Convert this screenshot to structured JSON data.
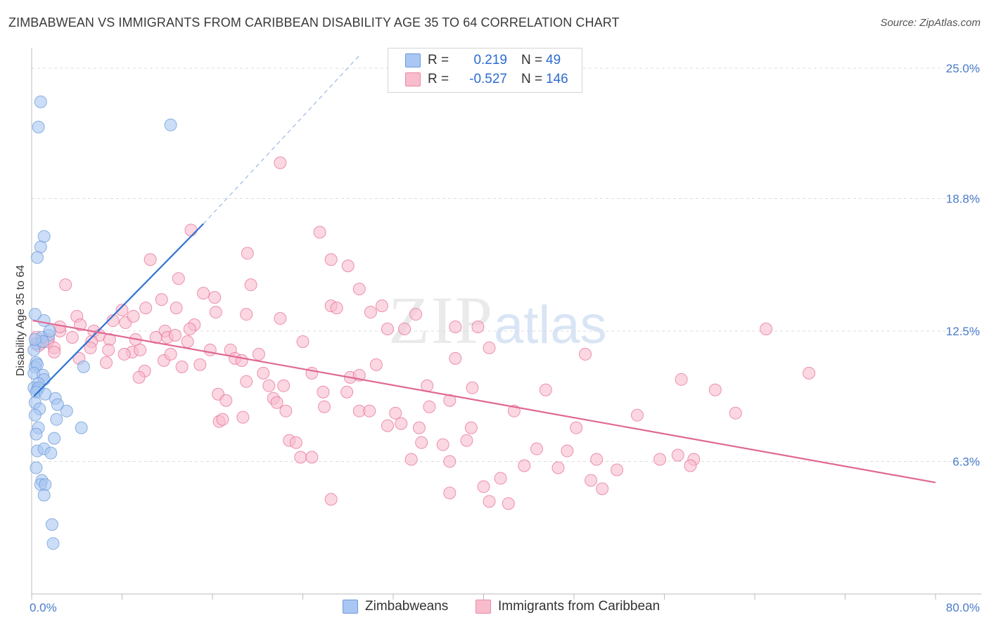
{
  "title": "ZIMBABWEAN VS IMMIGRANTS FROM CARIBBEAN DISABILITY AGE 35 TO 64 CORRELATION CHART",
  "source": "Source: ZipAtlas.com",
  "watermark": {
    "zip": "ZIP",
    "atlas": "atlas"
  },
  "legend": {
    "rows": [
      {
        "r_label": "R =",
        "r_value": "0.219",
        "n_label": "N =",
        "n_value": "49",
        "color": "#a9c7f2",
        "border": "#6c9ad8"
      },
      {
        "r_label": "R =",
        "r_value": "-0.527",
        "n_label": "N =",
        "n_value": "146",
        "color": "#f8bccd",
        "border": "#e88aa6"
      }
    ]
  },
  "bottom_legend": {
    "items": [
      {
        "label": "Zimbabweans",
        "color": "#a9c7f2",
        "border": "#6c9ad8"
      },
      {
        "label": "Immigrants from Caribbean",
        "color": "#f8bccd",
        "border": "#e88aa6"
      }
    ]
  },
  "chart_data": {
    "type": "scatter",
    "title": "ZIMBABWEAN VS IMMIGRANTS FROM CARIBBEAN DISABILITY AGE 35 TO 64 CORRELATION CHART",
    "xlabel": "",
    "ylabel": "Disability Age 35 to 64",
    "xlim": [
      0,
      80
    ],
    "ylim": [
      0,
      25
    ],
    "x_tick_labels": [
      "0.0%",
      "80.0%"
    ],
    "y_ticks": [
      6.3,
      12.5,
      18.8,
      25.0
    ],
    "y_tick_labels": [
      "6.3%",
      "12.5%",
      "18.8%",
      "25.0%"
    ],
    "grid": true,
    "legend_placement": "top-center",
    "series": [
      {
        "name": "Zimbabweans",
        "color": "#6c9ad8",
        "fill": "#a9c7f2",
        "trend": {
          "x": [
            0.2,
            15.2
          ],
          "y": [
            9.4,
            17.6
          ],
          "dashed_to": [
            29.0,
            25.0
          ]
        },
        "points": [
          [
            0.8,
            23.4
          ],
          [
            0.6,
            22.2
          ],
          [
            12.3,
            22.3
          ],
          [
            1.1,
            17.0
          ],
          [
            0.8,
            16.5
          ],
          [
            0.5,
            16.0
          ],
          [
            1.1,
            13.0
          ],
          [
            0.3,
            13.3
          ],
          [
            1.5,
            12.3
          ],
          [
            0.9,
            12.2
          ],
          [
            0.4,
            11.9
          ],
          [
            1.6,
            12.5
          ],
          [
            0.2,
            11.6
          ],
          [
            0.4,
            11.0
          ],
          [
            0.3,
            10.8
          ],
          [
            0.5,
            10.9
          ],
          [
            0.2,
            10.5
          ],
          [
            1.0,
            10.4
          ],
          [
            1.1,
            10.2
          ],
          [
            0.6,
            10.0
          ],
          [
            0.2,
            9.8
          ],
          [
            0.5,
            9.7
          ],
          [
            0.6,
            9.8
          ],
          [
            0.4,
            9.6
          ],
          [
            1.2,
            9.5
          ],
          [
            2.1,
            9.3
          ],
          [
            0.3,
            9.1
          ],
          [
            2.3,
            9.0
          ],
          [
            0.7,
            8.8
          ],
          [
            3.1,
            8.7
          ],
          [
            2.2,
            8.3
          ],
          [
            4.6,
            10.8
          ],
          [
            0.3,
            8.5
          ],
          [
            4.4,
            7.9
          ],
          [
            0.6,
            7.9
          ],
          [
            0.4,
            7.6
          ],
          [
            2.0,
            7.4
          ],
          [
            0.5,
            6.8
          ],
          [
            1.1,
            6.9
          ],
          [
            1.7,
            6.7
          ],
          [
            0.4,
            6.0
          ],
          [
            0.9,
            5.4
          ],
          [
            0.8,
            5.2
          ],
          [
            1.2,
            5.2
          ],
          [
            1.1,
            4.7
          ],
          [
            1.8,
            3.3
          ],
          [
            1.9,
            2.4
          ],
          [
            1.0,
            12.0
          ],
          [
            0.3,
            12.1
          ]
        ]
      },
      {
        "name": "Immigrants from Caribbean",
        "color": "#e6709a",
        "fill": "#f8bccd",
        "trend": {
          "x": [
            0.1,
            80.0
          ],
          "y": [
            13.0,
            5.3
          ]
        },
        "points": [
          [
            22.0,
            20.5
          ],
          [
            14.1,
            17.3
          ],
          [
            25.5,
            17.2
          ],
          [
            19.1,
            16.2
          ],
          [
            10.5,
            15.9
          ],
          [
            26.5,
            15.9
          ],
          [
            28.0,
            15.6
          ],
          [
            13.0,
            15.0
          ],
          [
            19.4,
            14.7
          ],
          [
            29.0,
            14.5
          ],
          [
            3.0,
            14.7
          ],
          [
            15.2,
            14.3
          ],
          [
            16.2,
            14.1
          ],
          [
            11.5,
            14.0
          ],
          [
            8.0,
            13.5
          ],
          [
            10.1,
            13.6
          ],
          [
            12.8,
            13.6
          ],
          [
            16.3,
            13.4
          ],
          [
            26.5,
            13.7
          ],
          [
            27.0,
            13.6
          ],
          [
            31.0,
            13.7
          ],
          [
            30.0,
            13.4
          ],
          [
            34.0,
            13.3
          ],
          [
            4.0,
            13.2
          ],
          [
            19.0,
            13.3
          ],
          [
            22.0,
            13.1
          ],
          [
            7.2,
            13.0
          ],
          [
            8.3,
            12.9
          ],
          [
            14.4,
            12.8
          ],
          [
            37.5,
            12.7
          ],
          [
            39.5,
            12.7
          ],
          [
            33.0,
            12.6
          ],
          [
            31.5,
            12.6
          ],
          [
            65.0,
            12.6
          ],
          [
            2.5,
            12.5
          ],
          [
            4.3,
            12.8
          ],
          [
            5.5,
            12.5
          ],
          [
            6.0,
            12.3
          ],
          [
            11.8,
            12.5
          ],
          [
            12.0,
            12.2
          ],
          [
            12.7,
            12.3
          ],
          [
            9.2,
            12.1
          ],
          [
            5.3,
            12.0
          ],
          [
            1.5,
            12.1
          ],
          [
            0.8,
            11.9
          ],
          [
            1.4,
            12.0
          ],
          [
            2.0,
            11.7
          ],
          [
            3.6,
            12.2
          ],
          [
            6.9,
            12.1
          ],
          [
            11.0,
            12.2
          ],
          [
            13.8,
            12.0
          ],
          [
            0.6,
            11.8
          ],
          [
            0.4,
            12.2
          ],
          [
            24.0,
            12.0
          ],
          [
            5.2,
            11.7
          ],
          [
            6.8,
            11.6
          ],
          [
            8.9,
            11.5
          ],
          [
            9.6,
            11.6
          ],
          [
            17.6,
            11.6
          ],
          [
            15.8,
            11.6
          ],
          [
            20.1,
            11.4
          ],
          [
            40.5,
            11.7
          ],
          [
            18.0,
            11.2
          ],
          [
            2.0,
            11.5
          ],
          [
            8.2,
            11.4
          ],
          [
            4.2,
            11.2
          ],
          [
            37.5,
            11.2
          ],
          [
            6.6,
            11.0
          ],
          [
            11.7,
            11.1
          ],
          [
            18.6,
            11.1
          ],
          [
            14.9,
            10.9
          ],
          [
            13.3,
            10.8
          ],
          [
            10.0,
            10.6
          ],
          [
            20.5,
            10.5
          ],
          [
            24.8,
            10.5
          ],
          [
            28.2,
            10.3
          ],
          [
            29.0,
            10.4
          ],
          [
            30.5,
            10.9
          ],
          [
            49.0,
            11.4
          ],
          [
            57.5,
            10.2
          ],
          [
            68.8,
            10.5
          ],
          [
            9.5,
            10.3
          ],
          [
            19.0,
            10.1
          ],
          [
            21.0,
            9.9
          ],
          [
            22.3,
            9.9
          ],
          [
            35.0,
            9.9
          ],
          [
            39.0,
            9.8
          ],
          [
            45.5,
            9.7
          ],
          [
            60.5,
            9.7
          ],
          [
            16.5,
            9.5
          ],
          [
            25.8,
            9.6
          ],
          [
            27.9,
            9.6
          ],
          [
            21.4,
            9.3
          ],
          [
            17.2,
            9.2
          ],
          [
            21.7,
            9.1
          ],
          [
            37.0,
            9.2
          ],
          [
            22.5,
            8.7
          ],
          [
            25.9,
            8.9
          ],
          [
            29.0,
            8.7
          ],
          [
            29.9,
            8.7
          ],
          [
            32.2,
            8.6
          ],
          [
            35.2,
            8.9
          ],
          [
            42.7,
            8.7
          ],
          [
            16.6,
            8.2
          ],
          [
            53.6,
            8.5
          ],
          [
            62.3,
            8.6
          ],
          [
            16.9,
            8.3
          ],
          [
            18.7,
            8.4
          ],
          [
            31.5,
            8.0
          ],
          [
            32.7,
            8.1
          ],
          [
            34.3,
            7.9
          ],
          [
            38.9,
            7.9
          ],
          [
            48.2,
            7.9
          ],
          [
            22.8,
            7.3
          ],
          [
            23.4,
            7.2
          ],
          [
            34.5,
            7.2
          ],
          [
            36.4,
            7.1
          ],
          [
            38.5,
            7.3
          ],
          [
            44.7,
            6.9
          ],
          [
            47.4,
            6.8
          ],
          [
            23.8,
            6.5
          ],
          [
            24.8,
            6.5
          ],
          [
            33.6,
            6.4
          ],
          [
            37.0,
            6.3
          ],
          [
            50.0,
            6.4
          ],
          [
            55.6,
            6.4
          ],
          [
            57.2,
            6.6
          ],
          [
            58.6,
            6.4
          ],
          [
            43.6,
            6.1
          ],
          [
            46.6,
            6.0
          ],
          [
            51.8,
            5.9
          ],
          [
            58.3,
            6.1
          ],
          [
            41.5,
            5.5
          ],
          [
            40.0,
            5.1
          ],
          [
            49.5,
            5.4
          ],
          [
            50.5,
            5.0
          ],
          [
            37.0,
            4.8
          ],
          [
            26.5,
            4.5
          ],
          [
            40.5,
            4.4
          ],
          [
            42.2,
            4.3
          ],
          [
            12.3,
            11.4
          ],
          [
            14.0,
            12.6
          ],
          [
            2.5,
            12.7
          ],
          [
            9.0,
            13.2
          ]
        ]
      }
    ]
  }
}
